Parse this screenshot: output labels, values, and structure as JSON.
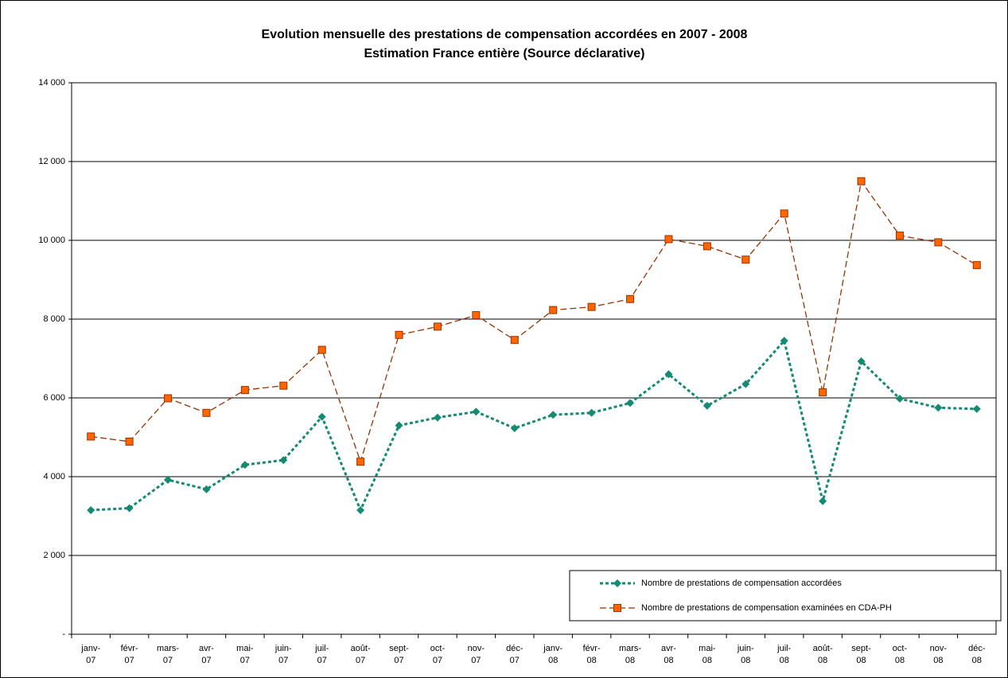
{
  "chart_data": {
    "type": "line",
    "title": "Evolution mensuelle des prestations de compensation accordées en 2007 - 2008",
    "subtitle": "Estimation France entière (Source déclarative)",
    "categories": [
      "janv-07",
      "févr-07",
      "mars-07",
      "avr-07",
      "mai-07",
      "juin-07",
      "juil-07",
      "août-07",
      "sept-07",
      "oct-07",
      "nov-07",
      "déc-07",
      "janv-08",
      "févr-08",
      "mars-08",
      "avr-08",
      "mai-08",
      "juin-08",
      "juil-08",
      "août-08",
      "sept-08",
      "oct-08",
      "nov-08",
      "déc-08"
    ],
    "series": [
      {
        "name": "Nombre de prestations de compensation accordées",
        "color": "#138a72",
        "marker": "diamond",
        "line_style": "dotted",
        "values": [
          3150,
          3200,
          3920,
          3680,
          4300,
          4420,
          5520,
          3150,
          5300,
          5500,
          5650,
          5230,
          5570,
          5620,
          5870,
          6600,
          5800,
          6350,
          7450,
          3380,
          6930,
          5980,
          5750,
          5720
        ]
      },
      {
        "name": "Nombre de prestations de compensation examinées en CDA-PH",
        "color": "#993300",
        "marker_fill": "#ff6600",
        "marker": "square",
        "line_style": "dashed",
        "values": [
          5020,
          4890,
          5990,
          5620,
          6200,
          6310,
          7220,
          4380,
          7600,
          7810,
          8100,
          7470,
          8230,
          8310,
          8510,
          10030,
          9850,
          9510,
          10680,
          6140,
          11500,
          10120,
          9950,
          9370
        ]
      }
    ],
    "ylim": [
      0,
      14000
    ],
    "yticks": [
      {
        "value": 0,
        "label": "-"
      },
      {
        "value": 2000,
        "label": "2 000"
      },
      {
        "value": 4000,
        "label": "4 000"
      },
      {
        "value": 6000,
        "label": "6 000"
      },
      {
        "value": 8000,
        "label": "8 000"
      },
      {
        "value": 10000,
        "label": "10 000"
      },
      {
        "value": 12000,
        "label": "12 000"
      },
      {
        "value": 14000,
        "label": "14 000"
      }
    ],
    "grid": true,
    "legend": "lower right"
  }
}
